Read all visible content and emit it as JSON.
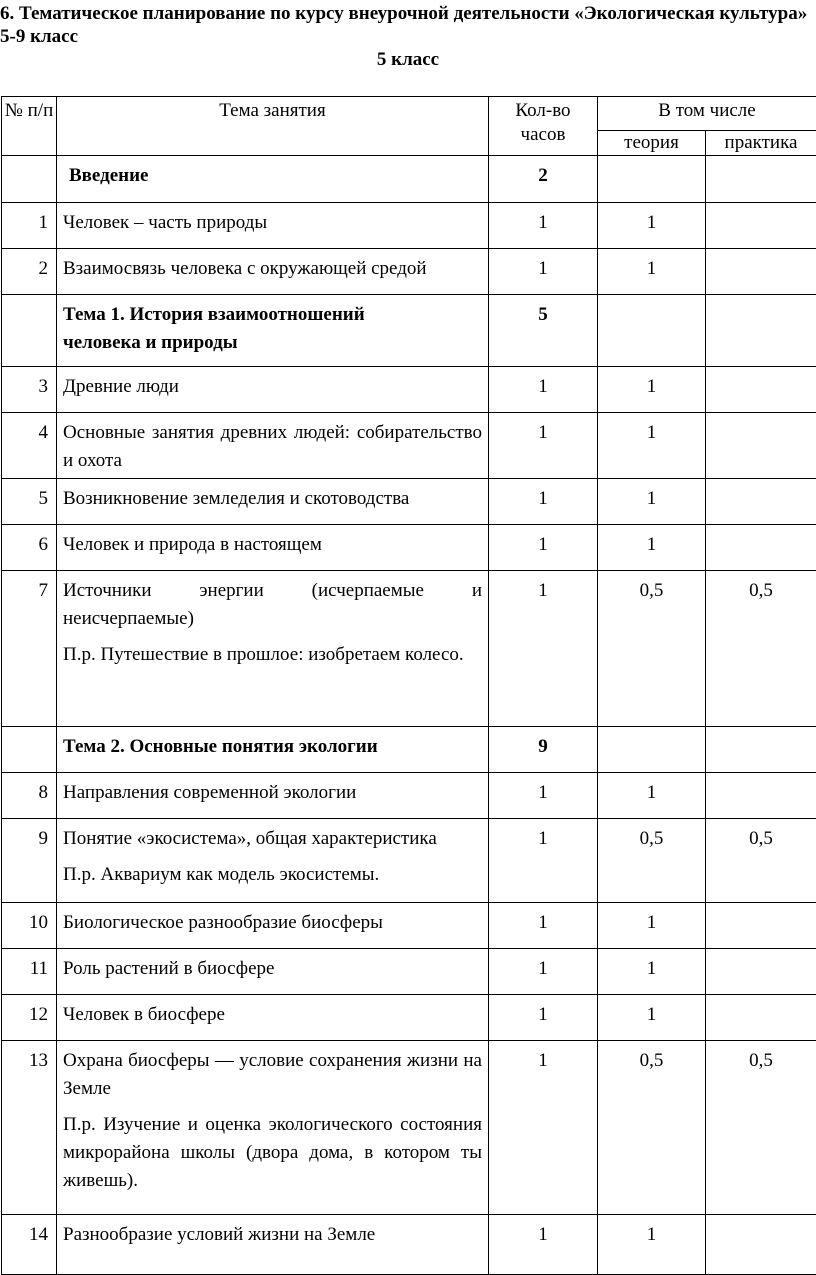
{
  "heading": "6. Тематическое планирование по курсу внеурочной деятельности «Экологическая культура» 5-9 класс",
  "subheading": "5 класс",
  "table": {
    "headers": {
      "num": "№ п/п",
      "topic": "Тема занятия",
      "hours": "Кол-во часов",
      "including": "В том числе",
      "theory": "теория",
      "practice": "практика"
    },
    "rows": [
      {
        "num": "",
        "topic": "Введение",
        "extra": "",
        "hours": "2",
        "theory": "",
        "practice": "",
        "section": true,
        "h": 47
      },
      {
        "num": "1",
        "topic": "Человек – часть природы",
        "extra": "",
        "hours": "1",
        "theory": "1",
        "practice": "",
        "h": 46
      },
      {
        "num": "2",
        "topic": "Взаимосвязь человека с окружающей средой",
        "extra": "",
        "hours": "1",
        "theory": "1",
        "practice": "",
        "h": 46
      },
      {
        "num": "",
        "topic": "Тема 1. История взаимоотношений человека и природы",
        "extra": "",
        "hours": "5",
        "theory": "",
        "practice": "",
        "section": true,
        "h": 72
      },
      {
        "num": "3",
        "topic": "Древние люди",
        "extra": "",
        "hours": "1",
        "theory": "1",
        "practice": "",
        "h": 46
      },
      {
        "num": "4",
        "topic": "Основные занятия древних людей: собирательство и охота",
        "extra": "",
        "hours": "1",
        "theory": "1",
        "practice": "",
        "h": 66
      },
      {
        "num": "5",
        "topic": "Возникновение земледелия и скотоводства",
        "extra": "",
        "hours": "1",
        "theory": "1",
        "practice": "",
        "h": 46
      },
      {
        "num": "6",
        "topic": "Человек и природа в настоящем",
        "extra": "",
        "hours": "1",
        "theory": "1",
        "practice": "",
        "h": 46
      },
      {
        "num": "7",
        "topic": "Источники энергии (исчерпаемые и неисчерпаемые)",
        "extra": "П.р. Путешествие в прошлое: изобретаем колесо.",
        "hours": "1",
        "theory": "0,5",
        "practice": "0,5",
        "h": 156
      },
      {
        "num": "",
        "topic": "Тема 2. Основные понятия экологии",
        "extra": "",
        "hours": "9",
        "theory": "",
        "practice": "",
        "section": true,
        "h": 46
      },
      {
        "num": "8",
        "topic": "Направления современной экологии",
        "extra": "",
        "hours": "1",
        "theory": "1",
        "practice": "",
        "h": 46
      },
      {
        "num": "9",
        "topic": "Понятие «экосистема», общая характеристика",
        "extra": "П.р. Аквариум как модель экосистемы.",
        "hours": "1",
        "theory": "0,5",
        "practice": "0,5",
        "h": 84
      },
      {
        "num": "10",
        "topic": "Биологическое разнообразие биосферы",
        "extra": "",
        "hours": "1",
        "theory": "1",
        "practice": "",
        "h": 46
      },
      {
        "num": "11",
        "topic": "Роль растений в биосфере",
        "extra": "",
        "hours": "1",
        "theory": "1",
        "practice": "",
        "h": 46
      },
      {
        "num": "12",
        "topic": "Человек в биосфере",
        "extra": "",
        "hours": "1",
        "theory": "1",
        "practice": "",
        "h": 46
      },
      {
        "num": "13",
        "topic": "Охрана биосферы — условие сохранения жизни на Земле",
        "extra": "П.р. Изучение и оценка экологического состояния микрорайона школы (двора дома, в котором ты живешь).",
        "hours": "1",
        "theory": "0,5",
        "practice": "0,5",
        "h": 174
      },
      {
        "num": "14",
        "topic": "Разнообразие условий жизни на Земле",
        "extra": "",
        "hours": "1",
        "theory": "1",
        "practice": "",
        "h": 60
      }
    ]
  }
}
